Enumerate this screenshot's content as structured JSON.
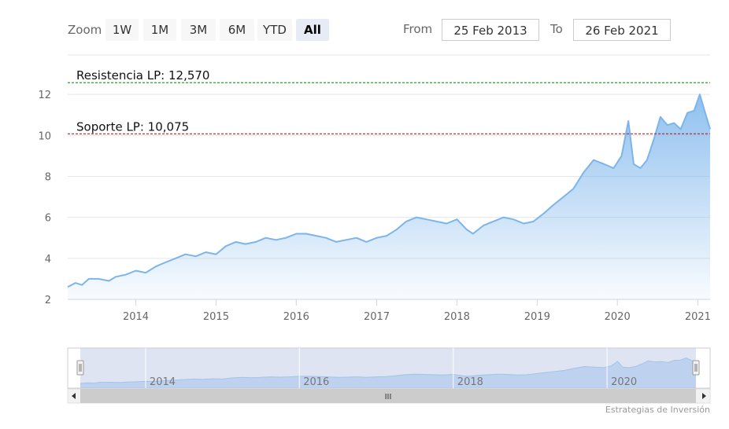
{
  "toolbar": {
    "zoom_label": "Zoom",
    "buttons": [
      "1W",
      "1M",
      "3M",
      "6M",
      "YTD",
      "All"
    ],
    "active": "All",
    "from_label": "From",
    "from_value": "25 Feb 2013",
    "to_label": "To",
    "to_value": "26 Feb 2021"
  },
  "credit": "Estrategias de Inversión",
  "colors": {
    "line": "#7cb5ec",
    "area_top": "#7cb5ec",
    "resistance": "#2e9e2e",
    "support": "#b22222",
    "navigator_mask": "#c5cde8",
    "grid": "#e6e6e6"
  },
  "navigator": {
    "xaxis_ticks": [
      "2014",
      "2016",
      "2018",
      "2020"
    ],
    "scrollbar_grip": "III"
  },
  "chart_data": {
    "type": "area",
    "title": "",
    "xlabel": "",
    "ylabel": "",
    "xlim": [
      "2013-02-25",
      "2021-02-26"
    ],
    "ylim": [
      2,
      13
    ],
    "grid": true,
    "xticks": [
      "2014",
      "2015",
      "2016",
      "2017",
      "2018",
      "2019",
      "2020",
      "2021"
    ],
    "yticks": [
      2,
      4,
      6,
      8,
      10,
      12
    ],
    "lines": [
      {
        "label": "Resistencia LP: 12,570",
        "value": 12.57,
        "style": "dashed"
      },
      {
        "label": "Soporte LP: 10,075",
        "value": 10.075,
        "style": "dashed"
      }
    ],
    "series": [
      {
        "points": [
          [
            "2013-02-25",
            2.6
          ],
          [
            "2013-04-01",
            2.8
          ],
          [
            "2013-05-01",
            2.7
          ],
          [
            "2013-06-01",
            3.0
          ],
          [
            "2013-07-15",
            3.0
          ],
          [
            "2013-09-01",
            2.9
          ],
          [
            "2013-10-01",
            3.1
          ],
          [
            "2013-11-15",
            3.2
          ],
          [
            "2014-01-01",
            3.4
          ],
          [
            "2014-02-15",
            3.3
          ],
          [
            "2014-04-01",
            3.6
          ],
          [
            "2014-05-15",
            3.8
          ],
          [
            "2014-07-01",
            4.0
          ],
          [
            "2014-08-15",
            4.2
          ],
          [
            "2014-10-01",
            4.1
          ],
          [
            "2014-11-15",
            4.3
          ],
          [
            "2015-01-01",
            4.2
          ],
          [
            "2015-02-15",
            4.6
          ],
          [
            "2015-04-01",
            4.8
          ],
          [
            "2015-05-15",
            4.7
          ],
          [
            "2015-07-01",
            4.8
          ],
          [
            "2015-08-15",
            5.0
          ],
          [
            "2015-10-01",
            4.9
          ],
          [
            "2015-11-15",
            5.0
          ],
          [
            "2016-01-01",
            5.2
          ],
          [
            "2016-02-15",
            5.2
          ],
          [
            "2016-04-01",
            5.1
          ],
          [
            "2016-05-15",
            5.0
          ],
          [
            "2016-07-01",
            4.8
          ],
          [
            "2016-08-15",
            4.9
          ],
          [
            "2016-10-01",
            5.0
          ],
          [
            "2016-11-15",
            4.8
          ],
          [
            "2017-01-01",
            5.0
          ],
          [
            "2017-02-15",
            5.1
          ],
          [
            "2017-04-01",
            5.4
          ],
          [
            "2017-05-15",
            5.8
          ],
          [
            "2017-07-01",
            6.0
          ],
          [
            "2017-08-15",
            5.9
          ],
          [
            "2017-10-01",
            5.8
          ],
          [
            "2017-11-15",
            5.7
          ],
          [
            "2018-01-01",
            5.9
          ],
          [
            "2018-02-15",
            5.4
          ],
          [
            "2018-03-15",
            5.2
          ],
          [
            "2018-05-01",
            5.6
          ],
          [
            "2018-06-15",
            5.8
          ],
          [
            "2018-08-01",
            6.0
          ],
          [
            "2018-09-15",
            5.9
          ],
          [
            "2018-11-01",
            5.7
          ],
          [
            "2018-12-15",
            5.8
          ],
          [
            "2019-02-01",
            6.2
          ],
          [
            "2019-03-15",
            6.6
          ],
          [
            "2019-05-01",
            7.0
          ],
          [
            "2019-06-15",
            7.4
          ],
          [
            "2019-08-01",
            8.2
          ],
          [
            "2019-09-15",
            8.8
          ],
          [
            "2019-11-01",
            8.6
          ],
          [
            "2019-12-15",
            8.4
          ],
          [
            "2020-01-20",
            9.0
          ],
          [
            "2020-02-20",
            10.7
          ],
          [
            "2020-03-15",
            8.6
          ],
          [
            "2020-04-15",
            8.4
          ],
          [
            "2020-05-15",
            8.8
          ],
          [
            "2020-06-15",
            9.8
          ],
          [
            "2020-07-15",
            10.9
          ],
          [
            "2020-08-15",
            10.5
          ],
          [
            "2020-09-15",
            10.6
          ],
          [
            "2020-10-15",
            10.3
          ],
          [
            "2020-11-15",
            11.1
          ],
          [
            "2020-12-15",
            11.2
          ],
          [
            "2021-01-10",
            12.0
          ],
          [
            "2021-02-01",
            11.2
          ],
          [
            "2021-02-26",
            10.3
          ]
        ]
      }
    ]
  }
}
